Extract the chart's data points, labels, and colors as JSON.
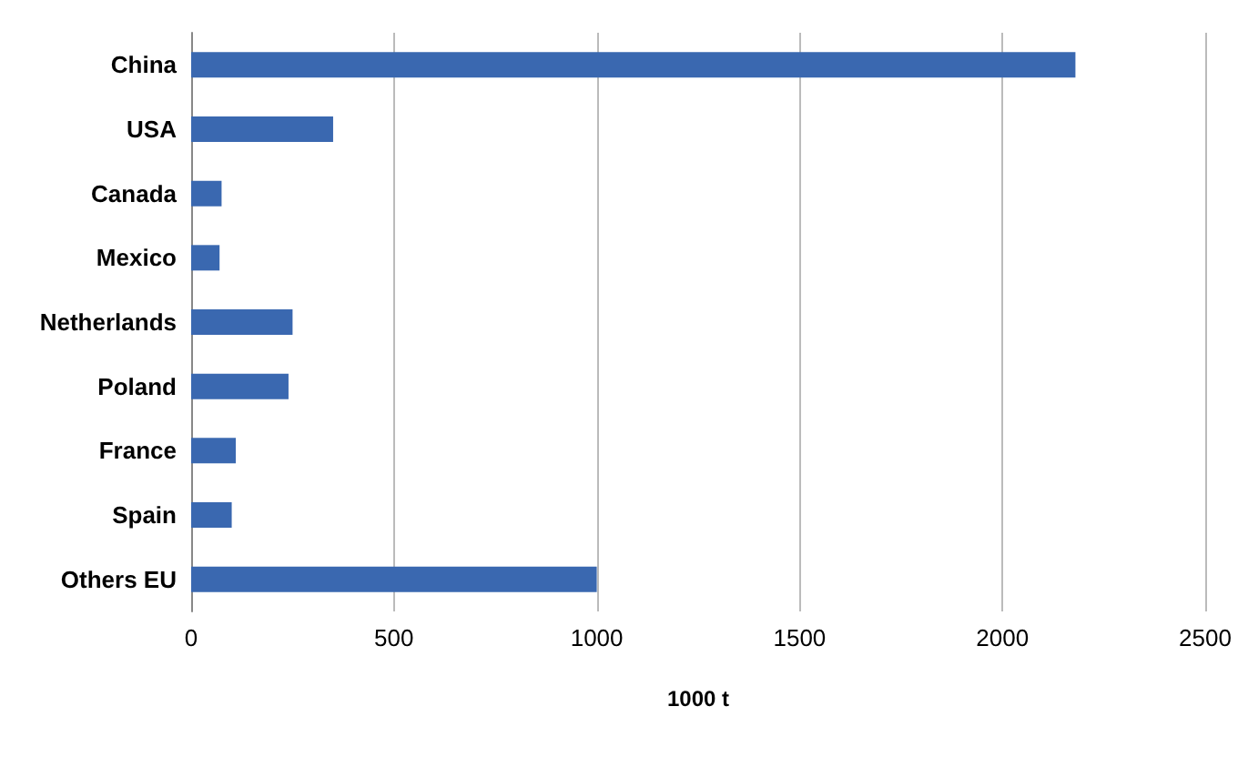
{
  "chart_data": {
    "type": "bar",
    "orientation": "horizontal",
    "xlabel": "1000 t",
    "categories": [
      "China",
      "USA",
      "Canada",
      "Mexico",
      "Netherlands",
      "Poland",
      "France",
      "Spain",
      "Others EU"
    ],
    "values": [
      2180,
      350,
      75,
      70,
      250,
      240,
      110,
      100,
      1000
    ],
    "color": "#3a68b0",
    "xlim": [
      0,
      2500
    ],
    "xticks": [
      0,
      500,
      1000,
      1500,
      2000,
      2500
    ],
    "grid": "x"
  }
}
